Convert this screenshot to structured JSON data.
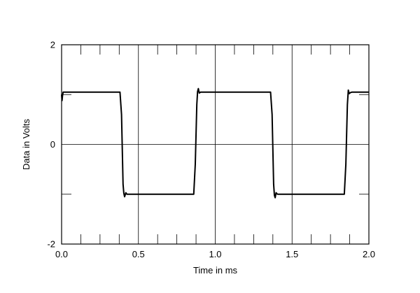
{
  "chart_data": {
    "type": "line",
    "title": "",
    "xlabel": "Time in ms",
    "ylabel": "Data in Volts",
    "xlim": [
      0,
      2
    ],
    "ylim": [
      -2,
      2
    ],
    "grid": true,
    "x_ticks": [
      {
        "value": 0,
        "label": "0.0"
      },
      {
        "value": 0.5,
        "label": "0.5"
      },
      {
        "value": 1,
        "label": "1.0"
      },
      {
        "value": 1.5,
        "label": "1.5"
      },
      {
        "value": 2,
        "label": "2.0"
      }
    ],
    "y_ticks": [
      {
        "value": -2,
        "label": "-2"
      },
      {
        "value": 0,
        "label": "0"
      },
      {
        "value": 2,
        "label": "2"
      }
    ],
    "series": [
      {
        "color": "#000000",
        "x": [
          0.0,
          0.003,
          0.006,
          0.01,
          0.015,
          0.05,
          0.2,
          0.38,
          0.39,
          0.4,
          0.405,
          0.41,
          0.418,
          0.425,
          0.435,
          0.45,
          0.6,
          0.8,
          0.86,
          0.87,
          0.88,
          0.885,
          0.89,
          0.896,
          0.905,
          0.915,
          1.0,
          1.2,
          1.36,
          1.37,
          1.38,
          1.385,
          1.39,
          1.396,
          1.405,
          1.415,
          1.45,
          1.6,
          1.84,
          1.85,
          1.86,
          1.866,
          1.872,
          1.88,
          1.89,
          1.95,
          2.0
        ],
        "y": [
          1.0,
          0.88,
          0.98,
          1.05,
          1.05,
          1.05,
          1.05,
          1.05,
          0.6,
          -0.8,
          -0.98,
          -1.05,
          -0.97,
          -1.0,
          -1.0,
          -1.0,
          -1.0,
          -1.0,
          -1.0,
          -0.4,
          0.8,
          1.06,
          1.12,
          1.03,
          1.05,
          1.05,
          1.05,
          1.05,
          1.05,
          0.6,
          -0.8,
          -1.02,
          -1.07,
          -0.97,
          -1.0,
          -1.0,
          -1.0,
          -1.0,
          -1.0,
          -0.4,
          0.8,
          1.09,
          1.02,
          1.04,
          1.05,
          1.05,
          1.05
        ]
      }
    ]
  }
}
